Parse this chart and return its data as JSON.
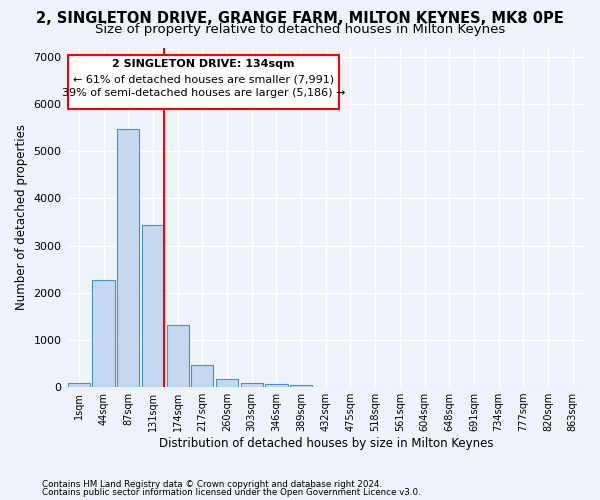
{
  "title1": "2, SINGLETON DRIVE, GRANGE FARM, MILTON KEYNES, MK8 0PE",
  "title2": "Size of property relative to detached houses in Milton Keynes",
  "xlabel": "Distribution of detached houses by size in Milton Keynes",
  "ylabel": "Number of detached properties",
  "bin_labels": [
    "1sqm",
    "44sqm",
    "87sqm",
    "131sqm",
    "174sqm",
    "217sqm",
    "260sqm",
    "303sqm",
    "346sqm",
    "389sqm",
    "432sqm",
    "475sqm",
    "518sqm",
    "561sqm",
    "604sqm",
    "648sqm",
    "691sqm",
    "734sqm",
    "777sqm",
    "820sqm",
    "863sqm"
  ],
  "bar_heights": [
    80,
    2280,
    5480,
    3440,
    1310,
    470,
    170,
    90,
    60,
    35,
    0,
    0,
    0,
    0,
    0,
    0,
    0,
    0,
    0,
    0,
    0
  ],
  "bar_color": "#c5d8f0",
  "bar_edge_color": "#4a90c4",
  "marker_bin_index": 3,
  "marker_color": "red",
  "ylim": [
    0,
    7200
  ],
  "yticks": [
    0,
    1000,
    2000,
    3000,
    4000,
    5000,
    6000,
    7000
  ],
  "annotation_line1": "2 SINGLETON DRIVE: 134sqm",
  "annotation_line2": "← 61% of detached houses are smaller (7,991)",
  "annotation_line3": "39% of semi-detached houses are larger (5,186) →",
  "footer1": "Contains HM Land Registry data © Crown copyright and database right 2024.",
  "footer2": "Contains public sector information licensed under the Open Government Licence v3.0.",
  "bg_color": "#eef2f9",
  "grid_color": "#ffffff",
  "title1_fontsize": 10.5,
  "title2_fontsize": 9.5
}
